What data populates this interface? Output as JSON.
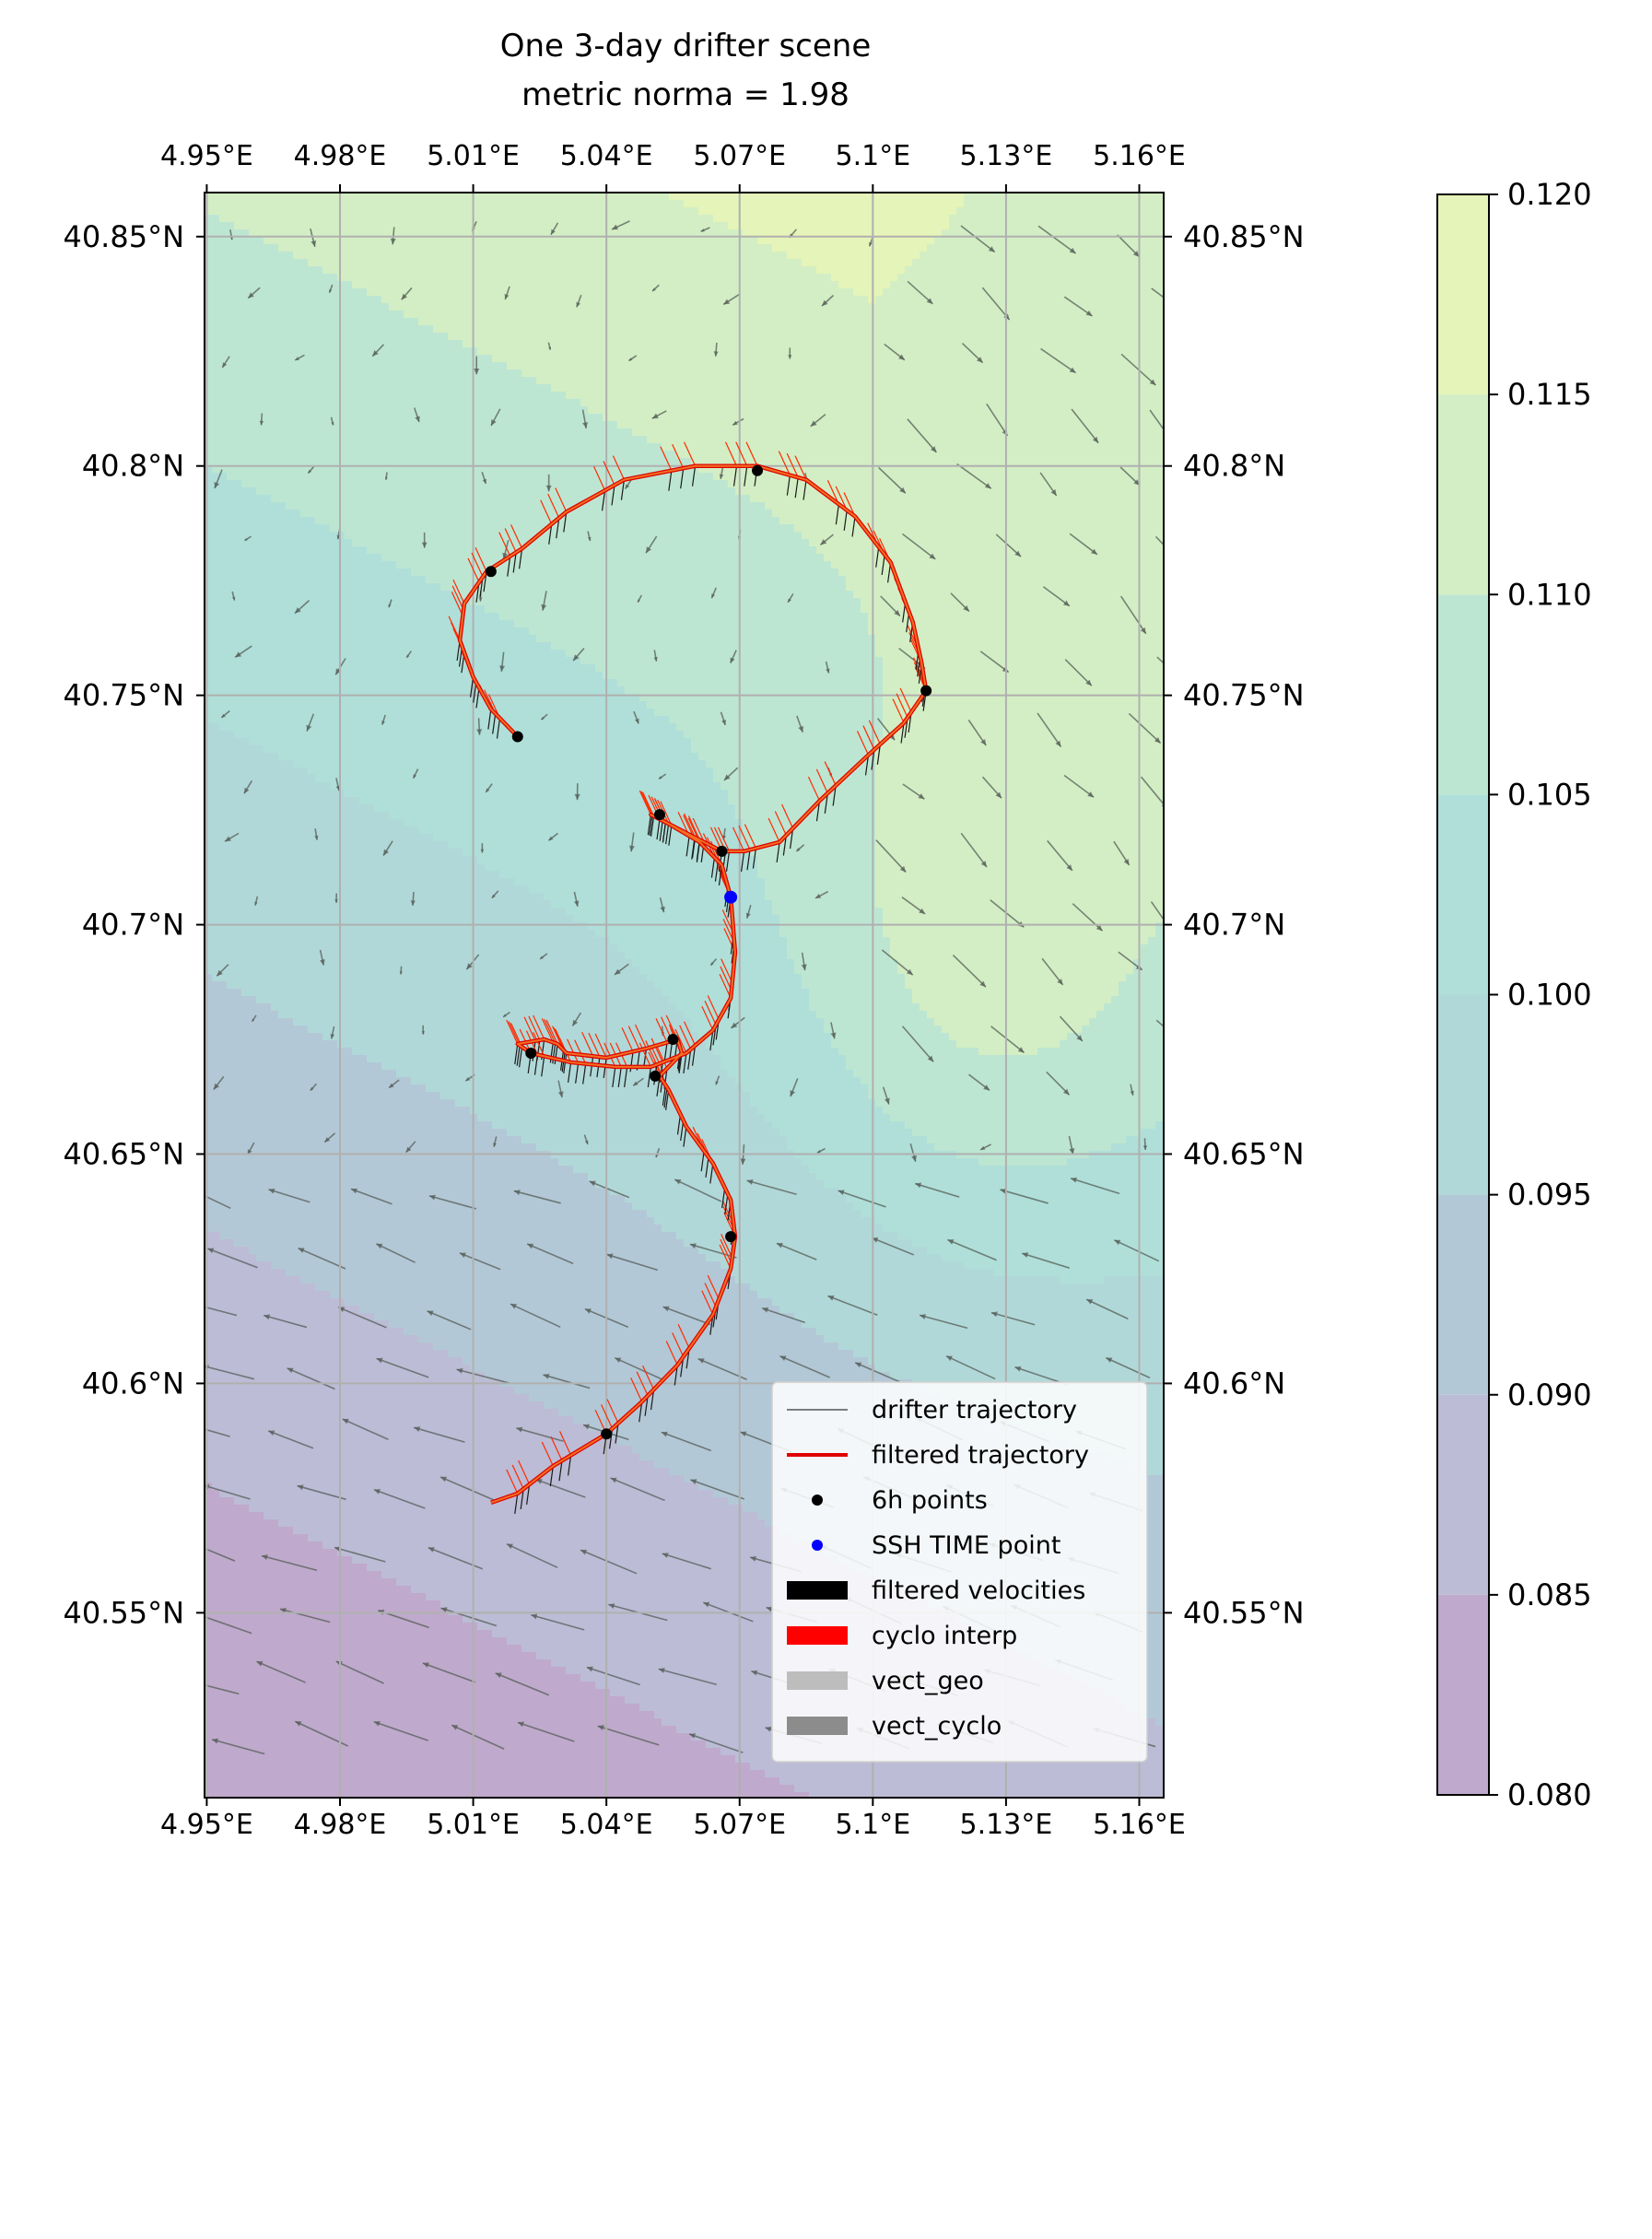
{
  "chart_data": {
    "type": "contour-map",
    "title_line1": "One 3-day drifter scene",
    "title_line2": "metric norma = 1.98",
    "xlim": [
      4.9495,
      5.1655
    ],
    "ylim": [
      40.5097,
      40.8596
    ],
    "x_ticks": [
      4.95,
      4.98,
      5.01,
      5.04,
      5.07,
      5.1,
      5.13,
      5.16
    ],
    "x_tick_labels": [
      "4.95°E",
      "4.98°E",
      "5.01°E",
      "5.04°E",
      "5.07°E",
      "5.1°E",
      "5.13°E",
      "5.16°E"
    ],
    "y_ticks": [
      40.55,
      40.6,
      40.65,
      40.7,
      40.75,
      40.8,
      40.85
    ],
    "y_tick_labels": [
      "40.55°N",
      "40.6°N",
      "40.65°N",
      "40.7°N",
      "40.75°N",
      "40.8°N",
      "40.85°N"
    ],
    "grid": true,
    "colorbar": {
      "levels": [
        0.08,
        0.085,
        0.09,
        0.095,
        0.1,
        0.105,
        0.11,
        0.115,
        0.12
      ],
      "tick_labels": [
        "0.080",
        "0.085",
        "0.090",
        "0.095",
        "0.100",
        "0.105",
        "0.110",
        "0.115",
        "0.120"
      ],
      "colors": [
        "#bfa9cc",
        "#bcbcd6",
        "#b3c8d6",
        "#b1d8d8",
        "#afdfd8",
        "#bde6d2",
        "#d3eec4",
        "#e5f4b8",
        "#f1f4aa"
      ]
    },
    "trajectory": [
      [
        5.014,
        40.574
      ],
      [
        5.02,
        40.576
      ],
      [
        5.028,
        40.582
      ],
      [
        5.04,
        40.589
      ],
      [
        5.048,
        40.596
      ],
      [
        5.056,
        40.604
      ],
      [
        5.064,
        40.615
      ],
      [
        5.068,
        40.625
      ],
      [
        5.069,
        40.632
      ],
      [
        5.068,
        40.64
      ],
      [
        5.064,
        40.648
      ],
      [
        5.058,
        40.656
      ],
      [
        5.054,
        40.664
      ],
      [
        5.052,
        40.667
      ],
      [
        5.057,
        40.672
      ],
      [
        5.056,
        40.675
      ],
      [
        5.049,
        40.673
      ],
      [
        5.04,
        40.671
      ],
      [
        5.031,
        40.672
      ],
      [
        5.029,
        40.674
      ],
      [
        5.026,
        40.675
      ],
      [
        5.02,
        40.674
      ],
      [
        5.023,
        40.672
      ],
      [
        5.032,
        40.67
      ],
      [
        5.042,
        40.669
      ],
      [
        5.05,
        40.669
      ],
      [
        5.058,
        40.672
      ],
      [
        5.064,
        40.677
      ],
      [
        5.068,
        40.684
      ],
      [
        5.069,
        40.694
      ],
      [
        5.068,
        40.706
      ],
      [
        5.066,
        40.713
      ],
      [
        5.061,
        40.718
      ],
      [
        5.054,
        40.722
      ],
      [
        5.05,
        40.724
      ],
      [
        5.052,
        40.723
      ],
      [
        5.06,
        40.719
      ],
      [
        5.066,
        40.716
      ],
      [
        5.071,
        40.716
      ],
      [
        5.079,
        40.718
      ],
      [
        5.088,
        40.727
      ],
      [
        5.099,
        40.737
      ],
      [
        5.107,
        40.744
      ],
      [
        5.112,
        40.751
      ],
      [
        5.111,
        40.757
      ],
      [
        5.109,
        40.766
      ],
      [
        5.104,
        40.779
      ],
      [
        5.096,
        40.789
      ],
      [
        5.085,
        40.797
      ],
      [
        5.074,
        40.8
      ],
      [
        5.06,
        40.8
      ],
      [
        5.044,
        40.797
      ],
      [
        5.031,
        40.79
      ],
      [
        5.021,
        40.782
      ],
      [
        5.013,
        40.777
      ],
      [
        5.008,
        40.77
      ],
      [
        5.007,
        40.762
      ],
      [
        5.01,
        40.754
      ],
      [
        5.014,
        40.747
      ],
      [
        5.02,
        40.741
      ]
    ],
    "points_6h": [
      [
        5.02,
        40.741
      ],
      [
        5.014,
        40.777
      ],
      [
        5.074,
        40.799
      ],
      [
        5.112,
        40.751
      ],
      [
        5.066,
        40.716
      ],
      [
        5.052,
        40.724
      ],
      [
        5.023,
        40.672
      ],
      [
        5.055,
        40.675
      ],
      [
        5.051,
        40.667
      ],
      [
        5.068,
        40.632
      ],
      [
        5.04,
        40.589
      ]
    ],
    "ssh_time_point": [
      5.068,
      40.706
    ],
    "legend": {
      "position": "lower-right",
      "entries": [
        {
          "label": "drifter trajectory",
          "kind": "line",
          "color": "#555555"
        },
        {
          "label": "filtered trajectory",
          "kind": "line",
          "color": "#e00000"
        },
        {
          "label": "6h points",
          "kind": "dot",
          "color": "#000000"
        },
        {
          "label": "SSH TIME point",
          "kind": "dot",
          "color": "#0000ff"
        },
        {
          "label": "filtered velocities",
          "kind": "patch",
          "color": "#000000"
        },
        {
          "label": "cyclo interp",
          "kind": "patch",
          "color": "#ff0000"
        },
        {
          "label": "vect_geo",
          "kind": "patch",
          "color": "#bdbdbd"
        },
        {
          "label": "vect_cyclo",
          "kind": "patch",
          "color": "#8c8c8c"
        }
      ]
    }
  }
}
